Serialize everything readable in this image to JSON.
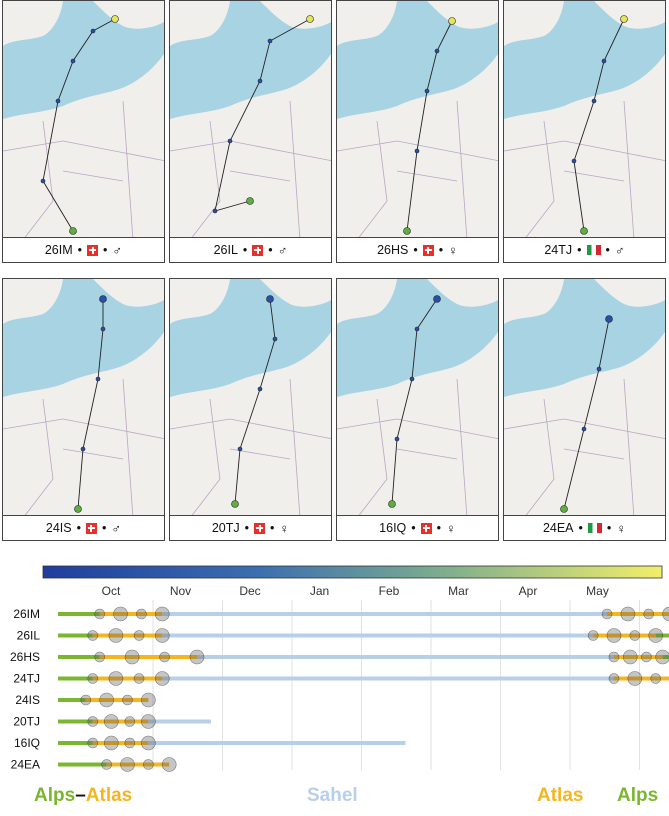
{
  "panels": [
    {
      "id": "26IM",
      "flag": "ch",
      "sex": "♂"
    },
    {
      "id": "26IL",
      "flag": "ch",
      "sex": "♂"
    },
    {
      "id": "26HS",
      "flag": "ch",
      "sex": "♀"
    },
    {
      "id": "24TJ",
      "flag": "it",
      "sex": "♂"
    },
    {
      "id": "24IS",
      "flag": "ch",
      "sex": "♂"
    },
    {
      "id": "20TJ",
      "flag": "ch",
      "sex": "♀"
    },
    {
      "id": "16IQ",
      "flag": "ch",
      "sex": "♀"
    },
    {
      "id": "24EA",
      "flag": "it",
      "sex": "♀"
    }
  ],
  "colors": {
    "sea": "#a7d3e3",
    "land": "#f1efec",
    "border": "#b9a6c2",
    "alps": "#7ab72f",
    "atlas": "#f5b520",
    "sahel": "#b7cfe8",
    "track": "#222222",
    "colorbar_start": "#1f3d9e",
    "colorbar_end": "#f2ee6a"
  },
  "chart_data": {
    "type": "timeline",
    "months": [
      "Oct",
      "Nov",
      "Dec",
      "Jan",
      "Feb",
      "Mar",
      "Apr",
      "May"
    ],
    "rows": [
      {
        "id": "26IM",
        "segments": [
          [
            "alps",
            0,
            0.6
          ],
          [
            "atlas",
            0.6,
            1.5
          ],
          [
            "sahel",
            1.5,
            7.9
          ],
          [
            "atlas",
            7.9,
            8.8
          ],
          [
            "alps",
            8.8,
            9.8
          ]
        ]
      },
      {
        "id": "26IL",
        "segments": [
          [
            "alps",
            0,
            0.5
          ],
          [
            "atlas",
            0.5,
            1.5
          ],
          [
            "sahel",
            1.5,
            7.7
          ],
          [
            "atlas",
            7.7,
            8.6
          ],
          [
            "alps",
            8.6,
            9.8
          ]
        ]
      },
      {
        "id": "26HS",
        "segments": [
          [
            "alps",
            0,
            0.6
          ],
          [
            "atlas",
            0.6,
            2.0
          ],
          [
            "sahel",
            2.0,
            8.0
          ],
          [
            "atlas",
            8.0,
            8.7
          ],
          [
            "alps",
            8.7,
            9.8
          ]
        ]
      },
      {
        "id": "24TJ",
        "segments": [
          [
            "alps",
            0,
            0.5
          ],
          [
            "atlas",
            0.5,
            1.5
          ],
          [
            "sahel",
            1.5,
            8.0
          ],
          [
            "atlas",
            8.0,
            8.9
          ],
          [
            "alps",
            8.9,
            9.8
          ]
        ]
      },
      {
        "id": "24IS",
        "segments": [
          [
            "alps",
            0,
            0.4
          ],
          [
            "atlas",
            0.4,
            1.3
          ]
        ]
      },
      {
        "id": "20TJ",
        "segments": [
          [
            "alps",
            0,
            0.5
          ],
          [
            "atlas",
            0.5,
            1.3
          ],
          [
            "sahel",
            1.3,
            2.2
          ]
        ]
      },
      {
        "id": "16IQ",
        "segments": [
          [
            "alps",
            0,
            0.5
          ],
          [
            "atlas",
            0.5,
            1.3
          ],
          [
            "sahel",
            1.3,
            5.0
          ]
        ]
      },
      {
        "id": "24EA",
        "segments": [
          [
            "alps",
            0,
            0.7
          ],
          [
            "atlas",
            0.7,
            1.6
          ]
        ]
      }
    ],
    "legend": {
      "alps": "Alps",
      "atlas": "Atlas",
      "sahel": "Sahel",
      "separator": "–"
    }
  }
}
